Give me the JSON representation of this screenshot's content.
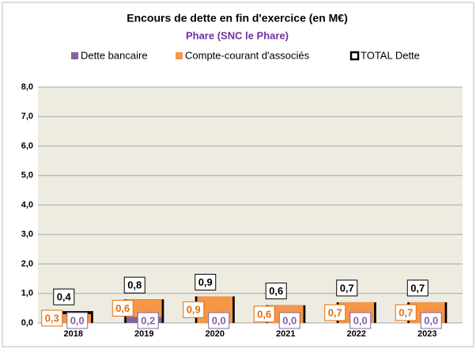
{
  "chart_data": {
    "type": "bar",
    "title": "Encours de dette en fin d'exercice (en M€)",
    "subtitle": "Phare (SNC le Phare)",
    "categories": [
      "2018",
      "2019",
      "2020",
      "2021",
      "2022",
      "2023"
    ],
    "series": [
      {
        "name": "Dette bancaire",
        "color": "#8064a2",
        "values": [
          0.0,
          0.2,
          0.0,
          0.0,
          0.0,
          0.0
        ],
        "value_labels": [
          "0,0",
          "0,2",
          "0,0",
          "0,0",
          "0,0",
          "0,0"
        ]
      },
      {
        "name": "Compte-courant d'associés",
        "color": "#f79646",
        "values": [
          0.3,
          0.6,
          0.9,
          0.6,
          0.7,
          0.7
        ],
        "value_labels": [
          "0,3",
          "0,6",
          "0,9",
          "0,6",
          "0,7",
          "0,7"
        ]
      },
      {
        "name": "TOTAL Dette",
        "color": "#000000",
        "values": [
          0.4,
          0.8,
          0.9,
          0.6,
          0.7,
          0.7
        ],
        "value_labels": [
          "0,4",
          "0,8",
          "0,9",
          "0,6",
          "0,7",
          "0,7"
        ]
      }
    ],
    "ylim": [
      0,
      8
    ],
    "yticks": [
      {
        "value": 0,
        "label": "0,0"
      },
      {
        "value": 1,
        "label": "1,0"
      },
      {
        "value": 2,
        "label": "2,0"
      },
      {
        "value": 3,
        "label": "3,0"
      },
      {
        "value": 4,
        "label": "4,0"
      },
      {
        "value": 5,
        "label": "5,0"
      },
      {
        "value": 6,
        "label": "6,0"
      },
      {
        "value": 7,
        "label": "7,0"
      },
      {
        "value": 8,
        "label": "8,0"
      }
    ],
    "grid": true
  }
}
